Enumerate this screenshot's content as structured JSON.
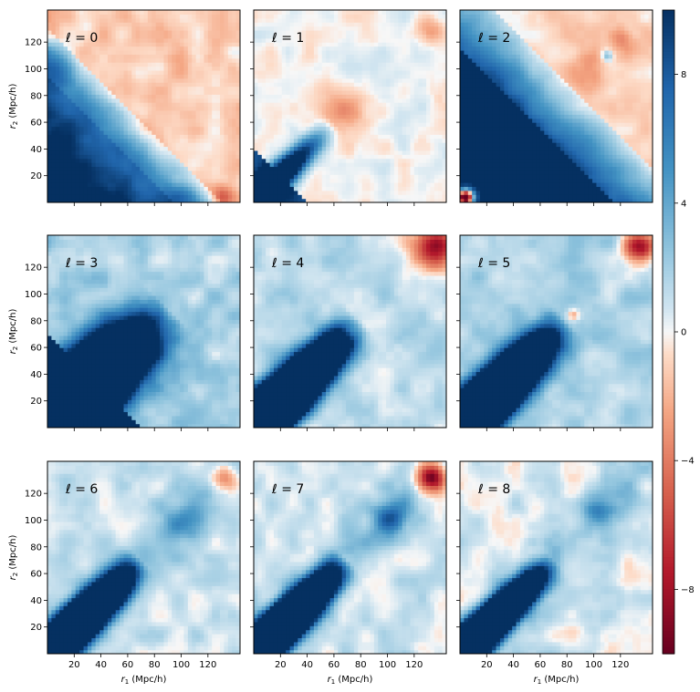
{
  "chart_data": {
    "type": "heatmap",
    "title": "",
    "xlabel": "r_1 (Mpc/h)",
    "ylabel": "r_2 (Mpc/h)",
    "xlim": [
      0,
      144
    ],
    "ylim": [
      0,
      144
    ],
    "xticks": [
      20,
      40,
      60,
      80,
      100,
      120
    ],
    "yticks": [
      20,
      40,
      60,
      80,
      100,
      120
    ],
    "colormap": "RdBu_r",
    "colorbar": {
      "vmin": -10,
      "vmax": 10,
      "ticks": [
        -8,
        -4,
        0,
        4,
        8
      ],
      "tick_labels": [
        "−8",
        "−4",
        "0",
        "4",
        "8"
      ]
    },
    "panels": [
      {
        "ell": 0,
        "label": "ℓ = 0"
      },
      {
        "ell": 1,
        "label": "ℓ = 1"
      },
      {
        "ell": 2,
        "label": "ℓ = 2"
      },
      {
        "ell": 3,
        "label": "ℓ = 3"
      },
      {
        "ell": 4,
        "label": "ℓ = 4"
      },
      {
        "ell": 5,
        "label": "ℓ = 5"
      },
      {
        "ell": 6,
        "label": "ℓ = 6"
      },
      {
        "ell": 7,
        "label": "ℓ = 7"
      },
      {
        "ell": 8,
        "label": "ℓ = 8"
      }
    ]
  },
  "colors": {
    "dark_blue": "#053061",
    "mid_blue": "#2166ac",
    "light_blue": "#92c5de",
    "white": "#f7f7f7",
    "light_red": "#f4a582",
    "mid_red": "#d6604d",
    "dark_red": "#67001f"
  }
}
